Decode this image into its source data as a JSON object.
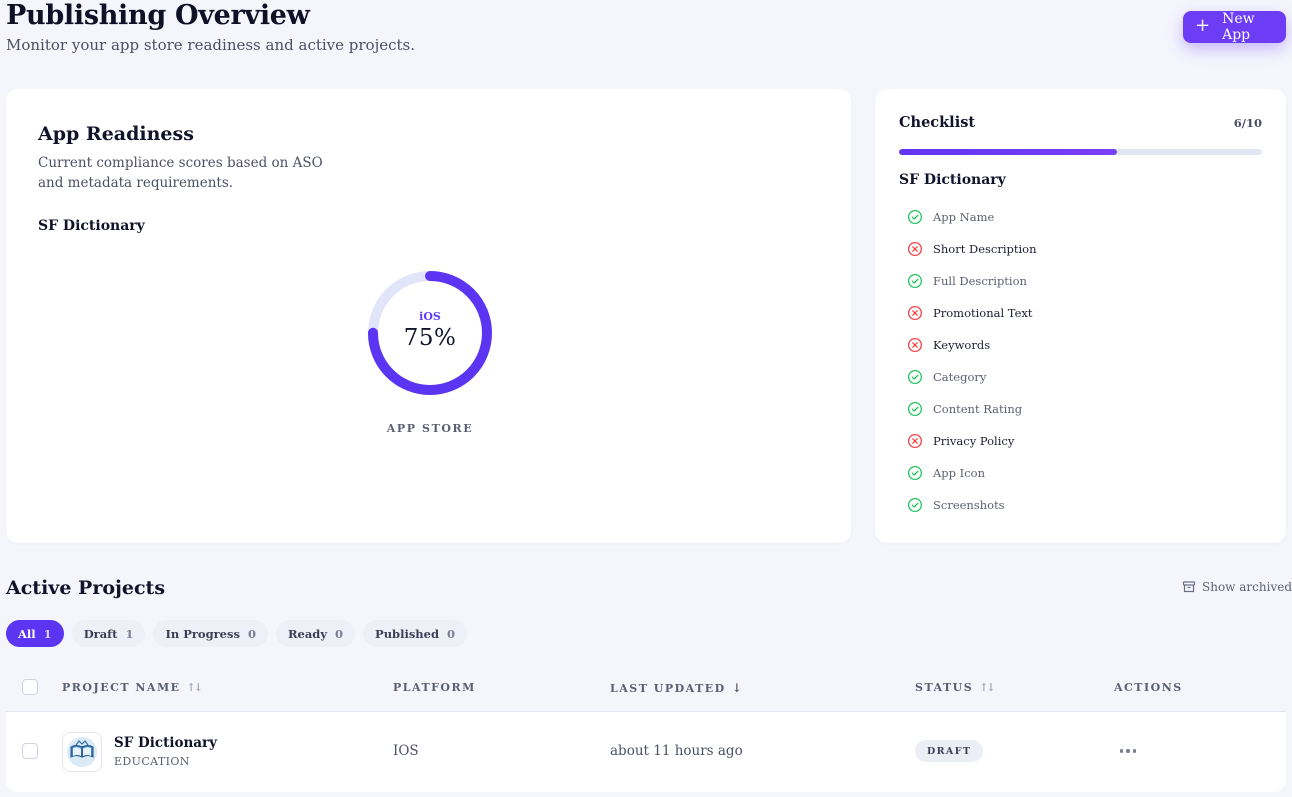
{
  "header": {
    "title": "Publishing Overview",
    "subtitle": "Monitor your app store readiness and active projects.",
    "new_app_label": "New App"
  },
  "readiness": {
    "title": "App Readiness",
    "description": "Current compliance scores based on ASO and metadata requirements.",
    "app_name": "SF Dictionary",
    "platform": "iOS",
    "score_text": "75%",
    "score_fraction": 0.75,
    "store_label": "APP STORE",
    "ring_color": "#5b35f2",
    "ring_track_color": "#e2e5fa"
  },
  "checklist": {
    "title": "Checklist",
    "count": "6/10",
    "progress_fraction": 0.6,
    "app_name": "SF Dictionary",
    "items": [
      {
        "label": "App Name",
        "done": true
      },
      {
        "label": "Short Description",
        "done": false
      },
      {
        "label": "Full Description",
        "done": true
      },
      {
        "label": "Promotional Text",
        "done": false
      },
      {
        "label": "Keywords",
        "done": false
      },
      {
        "label": "Category",
        "done": true
      },
      {
        "label": "Content Rating",
        "done": true
      },
      {
        "label": "Privacy Policy",
        "done": false
      },
      {
        "label": "App Icon",
        "done": true
      },
      {
        "label": "Screenshots",
        "done": true
      }
    ],
    "done_color": "#22c55e",
    "todo_color": "#ef4444"
  },
  "projects": {
    "title": "Active Projects",
    "show_archived": "Show archived",
    "filters": [
      {
        "label": "All",
        "count": "1",
        "active": true
      },
      {
        "label": "Draft",
        "count": "1",
        "active": false
      },
      {
        "label": "In Progress",
        "count": "0",
        "active": false
      },
      {
        "label": "Ready",
        "count": "0",
        "active": false
      },
      {
        "label": "Published",
        "count": "0",
        "active": false
      }
    ],
    "columns": {
      "name": "PROJECT NAME",
      "platform": "PLATFORM",
      "updated": "LAST UPDATED",
      "status": "STATUS",
      "actions": "ACTIONS"
    },
    "rows": [
      {
        "name": "SF Dictionary",
        "category": "EDUCATION",
        "platform": "IOS",
        "updated": "about 11 hours ago",
        "status": "DRAFT",
        "icon": "book-icon"
      }
    ]
  }
}
